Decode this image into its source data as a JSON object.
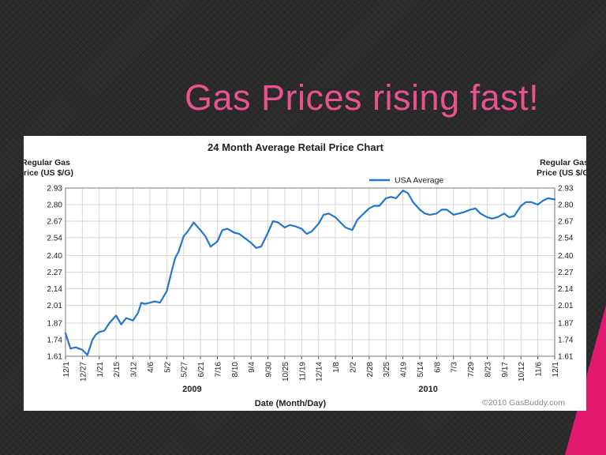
{
  "slide": {
    "title": "Gas Prices rising fast!",
    "accent_color": "#e21a6f",
    "title_color": "#e8538e"
  },
  "chart_data": {
    "type": "line",
    "title": "24 Month Average Retail Price Chart",
    "ylabel_left": "Regular Gas\nPrice (US $/G)",
    "ylabel_right": "Regular Gas\nPrice (US $/G)",
    "xlabel": "Date (Month/Day)",
    "credit": "©2010 GasBuddy.com",
    "grid": true,
    "legend_position": "top-right",
    "line_color": "#2277cc",
    "ylim": [
      1.61,
      2.93
    ],
    "y_ticks": [
      "2.93",
      "2.80",
      "2.67",
      "2.54",
      "2.40",
      "2.27",
      "2.14",
      "2.01",
      "1.87",
      "1.74",
      "1.61"
    ],
    "x_ticks": [
      "12/1",
      "12/27",
      "1/21",
      "2/15",
      "3/12",
      "4/6",
      "5/2",
      "5/27",
      "6/21",
      "7/16",
      "8/10",
      "9/4",
      "9/30",
      "10/25",
      "11/19",
      "12/14",
      "1/8",
      "2/2",
      "2/28",
      "3/25",
      "4/19",
      "5/14",
      "6/8",
      "7/3",
      "7/29",
      "8/23",
      "9/17",
      "10/12",
      "11/6",
      "12/1"
    ],
    "year_labels": [
      {
        "label": "2009",
        "at_tick": 7.5
      },
      {
        "label": "2010",
        "at_tick": 21.5
      }
    ],
    "series": [
      {
        "name": "USA Average",
        "x": [
          0,
          0.3,
          0.6,
          1.0,
          1.3,
          1.6,
          1.8,
          2.0,
          2.3,
          2.6,
          3.0,
          3.3,
          3.6,
          4.0,
          4.3,
          4.5,
          4.7,
          5.0,
          5.3,
          5.6,
          6.0,
          6.3,
          6.5,
          6.7,
          7.0,
          7.3,
          7.6,
          8.0,
          8.3,
          8.6,
          9.0,
          9.3,
          9.6,
          10.0,
          10.3,
          10.6,
          11.0,
          11.3,
          11.6,
          12.0,
          12.3,
          12.6,
          13.0,
          13.3,
          13.6,
          14.0,
          14.3,
          14.6,
          15.0,
          15.3,
          15.6,
          16.0,
          16.3,
          16.6,
          17.0,
          17.3,
          17.6,
          18.0,
          18.3,
          18.6,
          19.0,
          19.3,
          19.6,
          20.0,
          20.3,
          20.6,
          21.0,
          21.3,
          21.6,
          22.0,
          22.3,
          22.6,
          23.0,
          23.3,
          23.6,
          24.0,
          24.3,
          24.6,
          25.0,
          25.3,
          25.6,
          26.0,
          26.3,
          26.6,
          27.0,
          27.3,
          27.6,
          28.0,
          28.3,
          28.6,
          29.0
        ],
        "y": [
          1.79,
          1.67,
          1.68,
          1.66,
          1.62,
          1.74,
          1.78,
          1.8,
          1.81,
          1.87,
          1.93,
          1.86,
          1.91,
          1.89,
          1.95,
          2.03,
          2.02,
          2.03,
          2.04,
          2.03,
          2.12,
          2.28,
          2.38,
          2.43,
          2.55,
          2.6,
          2.66,
          2.6,
          2.55,
          2.47,
          2.51,
          2.6,
          2.61,
          2.58,
          2.57,
          2.54,
          2.5,
          2.46,
          2.47,
          2.58,
          2.67,
          2.66,
          2.62,
          2.64,
          2.63,
          2.61,
          2.57,
          2.59,
          2.65,
          2.72,
          2.73,
          2.7,
          2.66,
          2.62,
          2.6,
          2.68,
          2.72,
          2.77,
          2.79,
          2.79,
          2.85,
          2.86,
          2.85,
          2.91,
          2.89,
          2.82,
          2.76,
          2.73,
          2.72,
          2.73,
          2.76,
          2.76,
          2.72,
          2.73,
          2.74,
          2.76,
          2.77,
          2.73,
          2.7,
          2.69,
          2.7,
          2.73,
          2.7,
          2.71,
          2.79,
          2.82,
          2.82,
          2.8,
          2.83,
          2.85,
          2.84
        ]
      }
    ]
  }
}
